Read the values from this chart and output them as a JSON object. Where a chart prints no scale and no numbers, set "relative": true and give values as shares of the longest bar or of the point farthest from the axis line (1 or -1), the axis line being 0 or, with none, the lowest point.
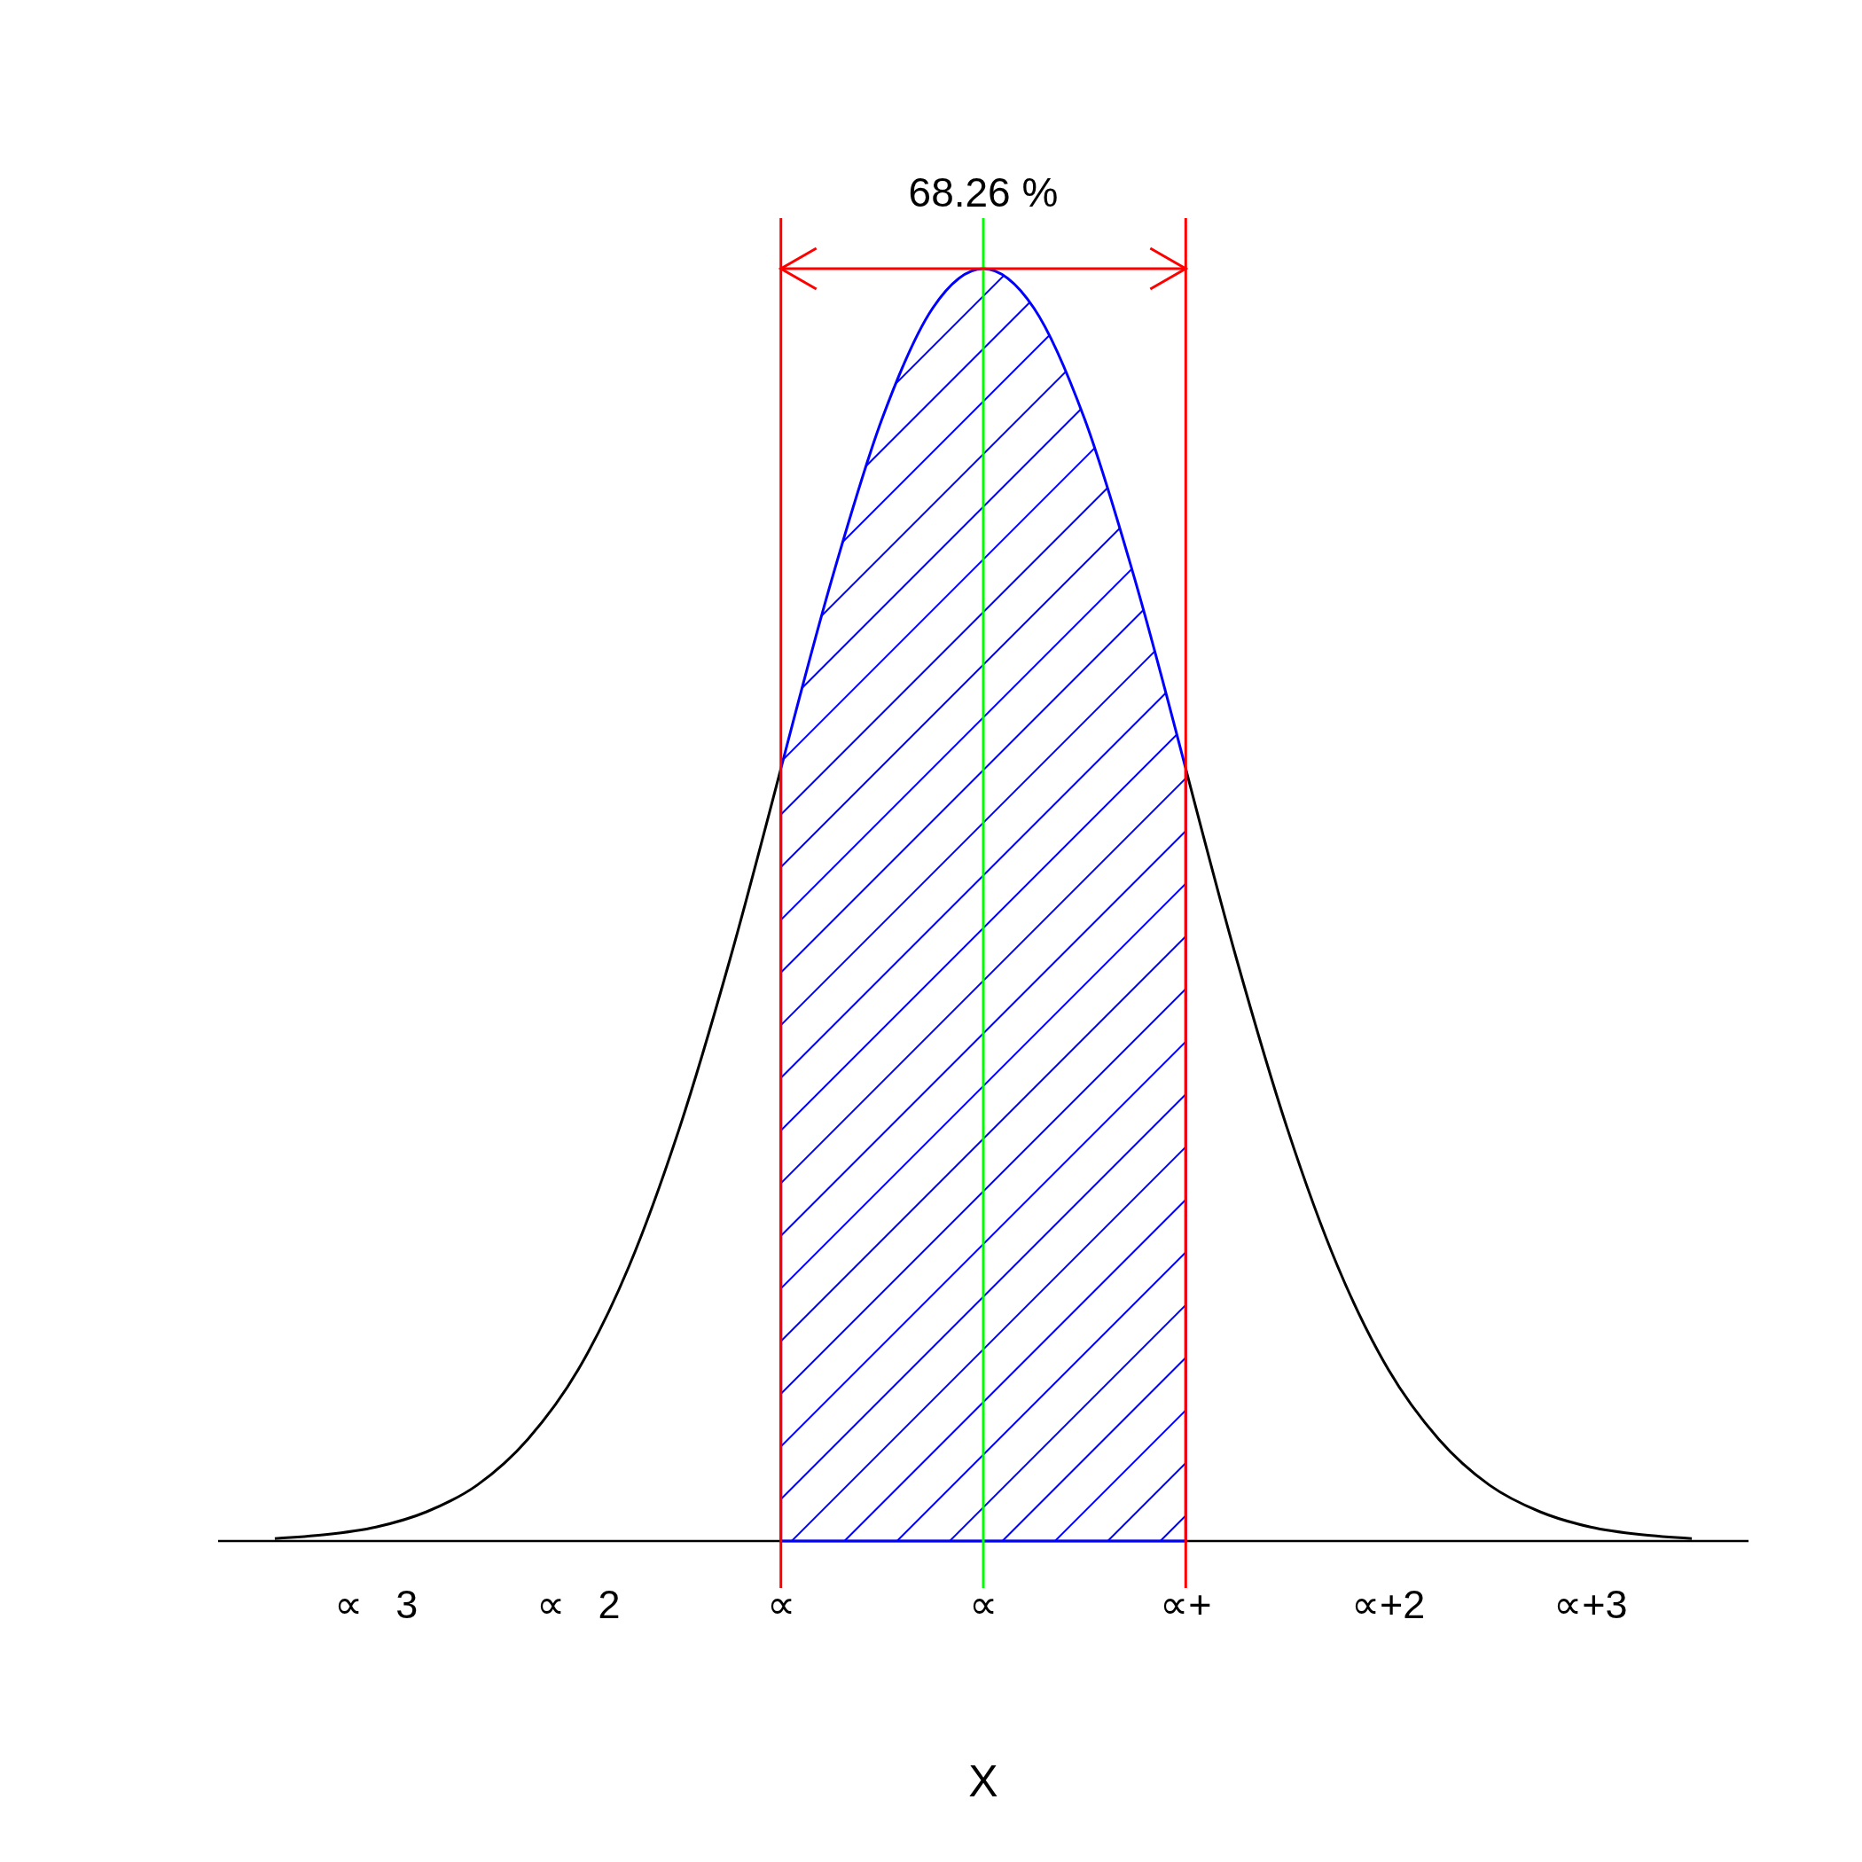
{
  "chart_data": {
    "type": "line",
    "relative": true,
    "xlabel": "X",
    "annotations": [
      "68.26 %"
    ],
    "xlim": [
      -3.78,
      3.78
    ],
    "xticks": [
      {
        "value": -3,
        "label": "∝   3"
      },
      {
        "value": -2,
        "label": "∝   2"
      },
      {
        "value": -1,
        "label": "∝"
      },
      {
        "value": 0,
        "label": "∝"
      },
      {
        "value": 1,
        "label": "∝+"
      },
      {
        "value": 2,
        "label": "∝+2"
      },
      {
        "value": 3,
        "label": "∝+3"
      }
    ],
    "tick_labels": "x",
    "series": [
      {
        "color": "#000000",
        "x": [
          -3.5,
          -3.25,
          -3,
          -2.75,
          -2.5,
          -2.25,
          -2,
          -1.75,
          -1.5,
          -1.25,
          -1
        ],
        "values": [
          0.002,
          0.005,
          0.011,
          0.023,
          0.044,
          0.08,
          0.135,
          0.216,
          0.325,
          0.458,
          0.607
        ]
      },
      {
        "color": "#000000",
        "x": [
          1,
          1.25,
          1.5,
          1.75,
          2,
          2.25,
          2.5,
          2.75,
          3,
          3.25,
          3.5
        ],
        "values": [
          0.607,
          0.458,
          0.325,
          0.216,
          0.135,
          0.08,
          0.044,
          0.023,
          0.011,
          0.005,
          0.002
        ]
      },
      {
        "type": "area",
        "color": "#0000ff",
        "x": [
          -1,
          -0.75,
          -0.5,
          -0.25,
          0,
          0.25,
          0.5,
          0.75,
          1
        ],
        "values": [
          0.607,
          0.755,
          0.882,
          0.969,
          1,
          0.969,
          0.882,
          0.755,
          0.607
        ]
      }
    ],
    "ref_lines": [
      {
        "axis": "x",
        "value": -1,
        "color": "#ff0000"
      },
      {
        "axis": "x",
        "value": 1,
        "color": "#ff0000"
      },
      {
        "axis": "x",
        "value": 0,
        "color": "#00ff00"
      }
    ]
  }
}
